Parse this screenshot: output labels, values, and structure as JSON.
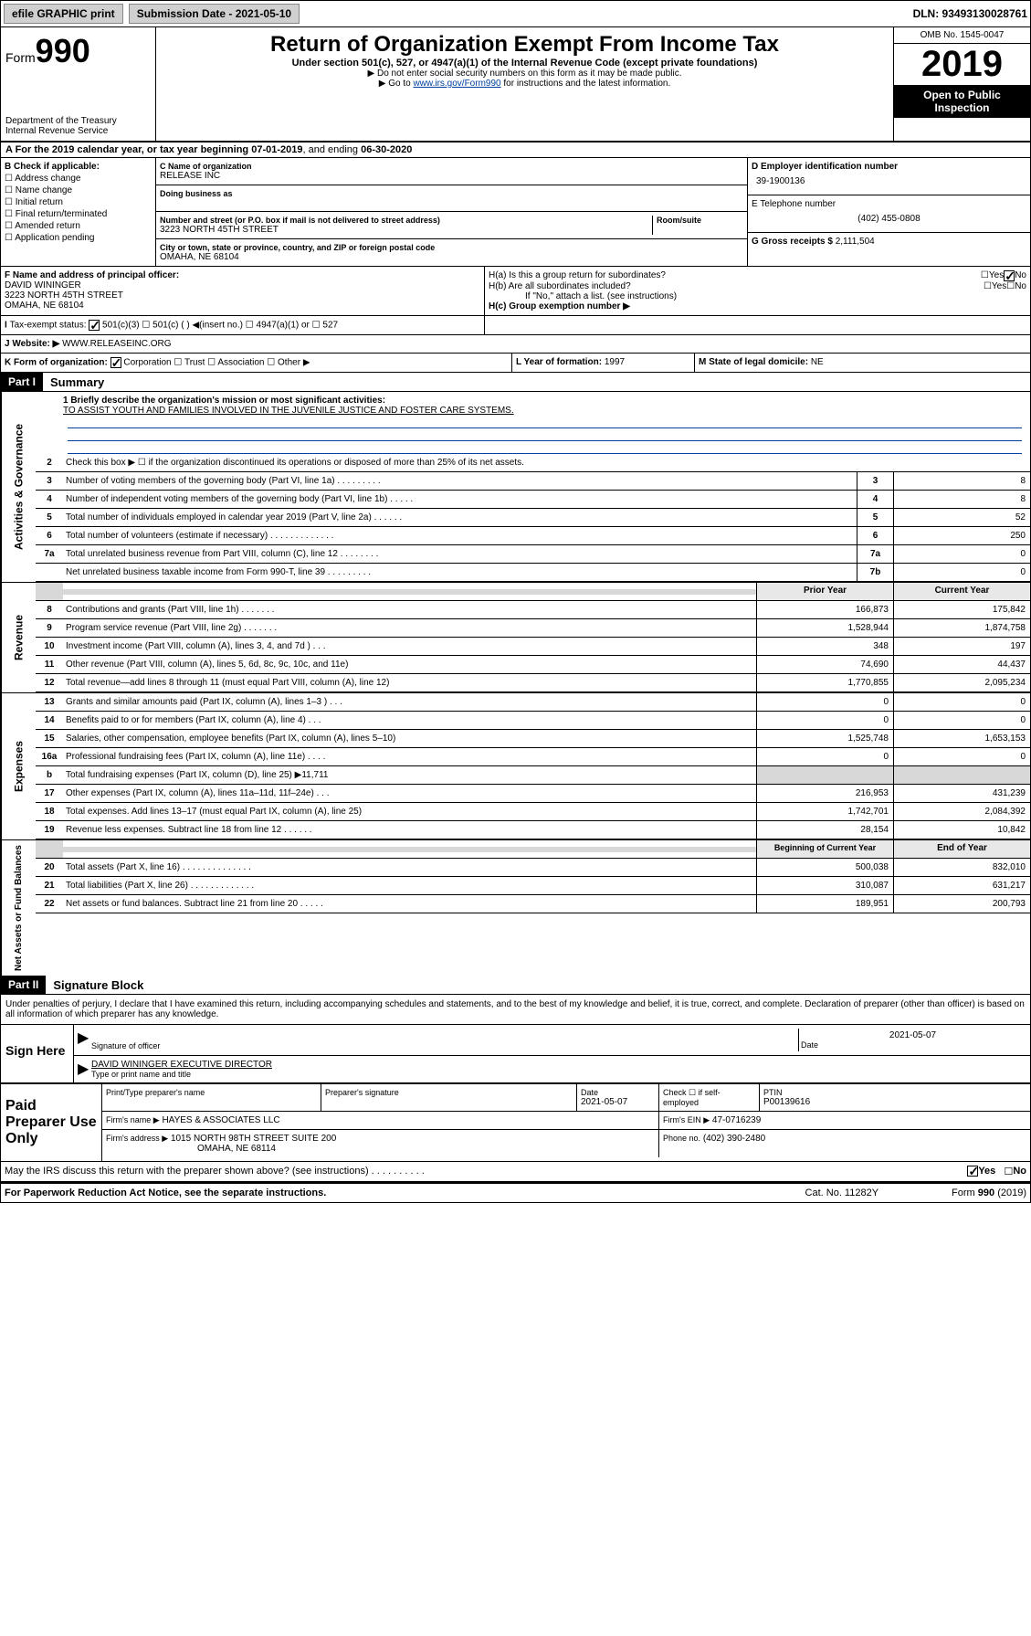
{
  "header": {
    "efile": "efile GRAPHIC print",
    "submission_date": "Submission Date - 2021-05-10",
    "dln": "DLN: 93493130028761"
  },
  "title": {
    "form": "Form",
    "number": "990",
    "main": "Return of Organization Exempt From Income Tax",
    "sub1": "Under section 501(c), 527, or 4947(a)(1) of the Internal Revenue Code (except private foundations)",
    "sub2": "▶ Do not enter social security numbers on this form as it may be made public.",
    "sub3_pre": "▶ Go to ",
    "sub3_link": "www.irs.gov/Form990",
    "sub3_post": " for instructions and the latest information.",
    "dept": "Department of the Treasury\nInternal Revenue Service",
    "omb": "OMB No. 1545-0047",
    "year": "2019",
    "open": "Open to Public Inspection"
  },
  "sectionA": {
    "text_pre": "A For the 2019 calendar year, or tax year beginning ",
    "begin": "07-01-2019",
    "mid": ", and ending ",
    "end": "06-30-2020"
  },
  "boxB": {
    "label": "B Check if applicable:",
    "opts": [
      "Address change",
      "Name change",
      "Initial return",
      "Final return/terminated",
      "Amended return",
      "Application pending"
    ]
  },
  "boxC": {
    "name_label": "C Name of organization",
    "name": "RELEASE INC",
    "dba_label": "Doing business as",
    "addr_label": "Number and street (or P.O. box if mail is not delivered to street address)",
    "room_label": "Room/suite",
    "addr": "3223 NORTH 45TH STREET",
    "city_label": "City or town, state or province, country, and ZIP or foreign postal code",
    "city": "OMAHA, NE  68104"
  },
  "boxD": {
    "label": "D Employer identification number",
    "val": "39-1900136"
  },
  "boxE": {
    "label": "E Telephone number",
    "val": "(402) 455-0808"
  },
  "boxG": {
    "label": "G Gross receipts $",
    "val": "2,111,504"
  },
  "boxF": {
    "label": "F Name and address of principal officer:",
    "name": "DAVID WININGER",
    "addr1": "3223 NORTH 45TH STREET",
    "addr2": "OMAHA, NE  68104"
  },
  "boxH": {
    "a": "H(a) Is this a group return for subordinates?",
    "b": "H(b) Are all subordinates included?",
    "note": "If \"No,\" attach a list. (see instructions)",
    "c": "H(c) Group exemption number ▶",
    "yes": "Yes",
    "no": "No"
  },
  "boxI": {
    "label": "Tax-exempt status:",
    "opts": [
      "501(c)(3)",
      "501(c) (  ) ◀(insert no.)",
      "4947(a)(1) or",
      "527"
    ]
  },
  "boxJ": {
    "label": "Website: ▶",
    "val": "WWW.RELEASEINC.ORG"
  },
  "boxK": {
    "label": "K Form of organization:",
    "opts": [
      "Corporation",
      "Trust",
      "Association",
      "Other ▶"
    ]
  },
  "boxL": {
    "label": "L Year of formation:",
    "val": "1997"
  },
  "boxM": {
    "label": "M State of legal domicile:",
    "val": "NE"
  },
  "part1": {
    "hdr": "Part I",
    "name": "Summary",
    "line1_label": "1 Briefly describe the organization's mission or most significant activities:",
    "line1_val": "TO ASSIST YOUTH AND FAMILIES INVOLVED IN THE JUVENILE JUSTICE AND FOSTER CARE SYSTEMS.",
    "line2": "Check this box ▶ ☐ if the organization discontinued its operations or disposed of more than 25% of its net assets.",
    "gov_label": "Activities & Governance",
    "rev_label": "Revenue",
    "exp_label": "Expenses",
    "net_label": "Net Assets or Fund Balances",
    "rows_gov": [
      {
        "n": "3",
        "t": "Number of voting members of the governing body (Part VI, line 1a)  .   .   .   .   .   .   .   .   .",
        "b": "3",
        "v": "8"
      },
      {
        "n": "4",
        "t": "Number of independent voting members of the governing body (Part VI, line 1b)  .   .   .   .   .",
        "b": "4",
        "v": "8"
      },
      {
        "n": "5",
        "t": "Total number of individuals employed in calendar year 2019 (Part V, line 2a)  .   .   .   .   .   .",
        "b": "5",
        "v": "52"
      },
      {
        "n": "6",
        "t": "Total number of volunteers (estimate if necessary)  .   .   .   .   .   .   .   .   .   .   .   .   .",
        "b": "6",
        "v": "250"
      },
      {
        "n": "7a",
        "t": "Total unrelated business revenue from Part VIII, column (C), line 12  .   .   .   .   .   .   .   .",
        "b": "7a",
        "v": "0"
      },
      {
        "n": "",
        "t": "Net unrelated business taxable income from Form 990-T, line 39  .   .   .   .   .   .   .   .   .",
        "b": "7b",
        "v": "0"
      }
    ],
    "col_hdrs": {
      "prior": "Prior Year",
      "current": "Current Year",
      "begin": "Beginning of Current Year",
      "end": "End of Year"
    },
    "rows_rev": [
      {
        "n": "8",
        "t": "Contributions and grants (Part VIII, line 1h)  .   .   .   .   .   .   .",
        "p": "166,873",
        "c": "175,842"
      },
      {
        "n": "9",
        "t": "Program service revenue (Part VIII, line 2g)  .   .   .   .   .   .   .",
        "p": "1,528,944",
        "c": "1,874,758"
      },
      {
        "n": "10",
        "t": "Investment income (Part VIII, column (A), lines 3, 4, and 7d )  .   .   .",
        "p": "348",
        "c": "197"
      },
      {
        "n": "11",
        "t": "Other revenue (Part VIII, column (A), lines 5, 6d, 8c, 9c, 10c, and 11e)",
        "p": "74,690",
        "c": "44,437"
      },
      {
        "n": "12",
        "t": "Total revenue—add lines 8 through 11 (must equal Part VIII, column (A), line 12)",
        "p": "1,770,855",
        "c": "2,095,234"
      }
    ],
    "rows_exp": [
      {
        "n": "13",
        "t": "Grants and similar amounts paid (Part IX, column (A), lines 1–3 )  .   .   .",
        "p": "0",
        "c": "0"
      },
      {
        "n": "14",
        "t": "Benefits paid to or for members (Part IX, column (A), line 4)  .   .   .",
        "p": "0",
        "c": "0"
      },
      {
        "n": "15",
        "t": "Salaries, other compensation, employee benefits (Part IX, column (A), lines 5–10)",
        "p": "1,525,748",
        "c": "1,653,153"
      },
      {
        "n": "16a",
        "t": "Professional fundraising fees (Part IX, column (A), line 11e)  .   .   .   .",
        "p": "0",
        "c": "0"
      }
    ],
    "line16b": "Total fundraising expenses (Part IX, column (D), line 25) ▶11,711",
    "rows_exp2": [
      {
        "n": "17",
        "t": "Other expenses (Part IX, column (A), lines 11a–11d, 11f–24e)  .   .   .",
        "p": "216,953",
        "c": "431,239"
      },
      {
        "n": "18",
        "t": "Total expenses. Add lines 13–17 (must equal Part IX, column (A), line 25)",
        "p": "1,742,701",
        "c": "2,084,392"
      },
      {
        "n": "19",
        "t": "Revenue less expenses. Subtract line 18 from line 12  .   .   .   .   .   .",
        "p": "28,154",
        "c": "10,842"
      }
    ],
    "rows_net": [
      {
        "n": "20",
        "t": "Total assets (Part X, line 16)  .   .   .   .   .   .   .   .   .   .   .   .   .   .",
        "p": "500,038",
        "c": "832,010"
      },
      {
        "n": "21",
        "t": "Total liabilities (Part X, line 26)  .   .   .   .   .   .   .   .   .   .   .   .   .",
        "p": "310,087",
        "c": "631,217"
      },
      {
        "n": "22",
        "t": "Net assets or fund balances. Subtract line 21 from line 20  .   .   .   .   .",
        "p": "189,951",
        "c": "200,793"
      }
    ]
  },
  "part2": {
    "hdr": "Part II",
    "name": "Signature Block",
    "decl": "Under penalties of perjury, I declare that I have examined this return, including accompanying schedules and statements, and to the best of my knowledge and belief, it is true, correct, and complete. Declaration of preparer (other than officer) is based on all information of which preparer has any knowledge.",
    "sign_here": "Sign Here",
    "sig_officer": "Signature of officer",
    "date": "Date",
    "date_val": "2021-05-07",
    "officer_name": "DAVID WININGER  EXECUTIVE DIRECTOR",
    "type_name": "Type or print name and title",
    "paid": "Paid Preparer Use Only",
    "prep_labels": {
      "print": "Print/Type preparer's name",
      "sig": "Preparer's signature",
      "pdate": "Date",
      "pdate_val": "2021-05-07",
      "check": "Check ☐ if self-employed",
      "ptin": "PTIN",
      "ptin_val": "P00139616",
      "firm": "Firm's name    ▶",
      "firm_val": "HAYES & ASSOCIATES LLC",
      "ein": "Firm's EIN ▶",
      "ein_val": "47-0716239",
      "addr": "Firm's address ▶",
      "addr_val1": "1015 NORTH 98TH STREET SUITE 200",
      "addr_val2": "OMAHA, NE  68114",
      "phone": "Phone no.",
      "phone_val": "(402) 390-2480"
    },
    "discuss": "May the IRS discuss this return with the preparer shown above? (see instructions)  .   .   .   .   .   .   .   .   .   .",
    "paperwork": "For Paperwork Reduction Act Notice, see the separate instructions.",
    "cat": "Cat. No. 11282Y",
    "formfoot": "Form 990 (2019)"
  }
}
